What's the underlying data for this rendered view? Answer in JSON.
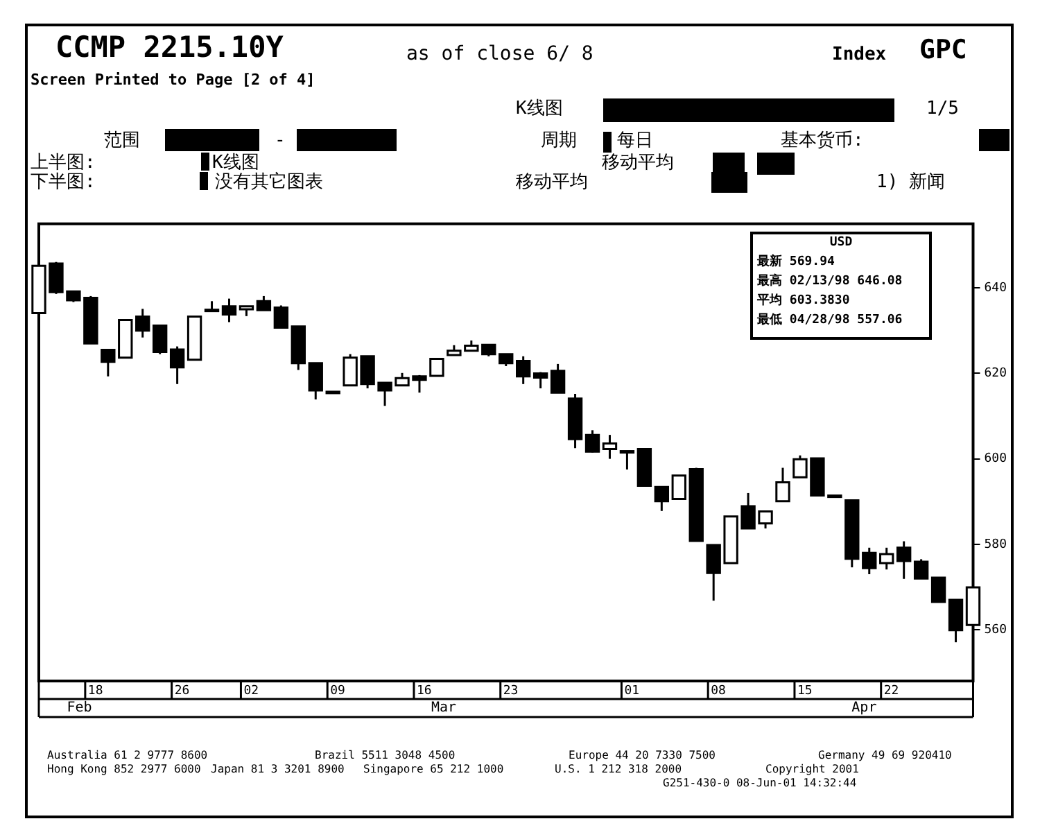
{
  "chart_data": {
    "type": "candlestick",
    "title": "CCMP   2215.10Y",
    "subtitle": "Screen Printed to Page [2 of 4]",
    "categories": [
      null,
      null,
      null,
      "18",
      null,
      null,
      null,
      null,
      "26",
      null,
      null,
      null,
      "02",
      null,
      null,
      null,
      null,
      "09",
      null,
      null,
      null,
      null,
      "16",
      null,
      null,
      null,
      null,
      "23",
      null,
      null,
      null,
      null,
      null,
      null,
      "01",
      null,
      null,
      null,
      null,
      "08",
      null,
      null,
      null,
      null,
      "15",
      null,
      null,
      null,
      null,
      "22",
      null,
      null,
      null,
      null,
      null
    ],
    "ohlc": [
      [
        634.1,
        645.2,
        634.1,
        645.2
      ],
      [
        645.7,
        646.08,
        638.6,
        639.0
      ],
      [
        639.2,
        639.2,
        636.7,
        637.1
      ],
      [
        637.7,
        638.1,
        627.0,
        627.0
      ],
      [
        625.5,
        625.5,
        619.3,
        622.7
      ],
      [
        623.7,
        632.5,
        623.7,
        632.5
      ],
      [
        633.3,
        635.1,
        628.4,
        630.0
      ],
      [
        631.2,
        631.2,
        624.5,
        625.0
      ],
      [
        625.6,
        626.3,
        617.5,
        621.4
      ],
      [
        623.2,
        633.3,
        623.2,
        633.3
      ],
      [
        634.9,
        636.9,
        634.8,
        634.8
      ],
      [
        635.7,
        637.5,
        632.0,
        633.8
      ],
      [
        635.0,
        635.7,
        633.4,
        635.7
      ],
      [
        636.9,
        638.1,
        634.8,
        634.8
      ],
      [
        635.4,
        635.9,
        630.7,
        630.7
      ],
      [
        631.0,
        631.0,
        620.8,
        622.4
      ],
      [
        622.4,
        622.4,
        613.9,
        616.0
      ],
      [
        615.7,
        615.7,
        615.7,
        615.7
      ],
      [
        617.2,
        624.5,
        617.2,
        623.7
      ],
      [
        624.0,
        624.0,
        616.5,
        617.5
      ],
      [
        617.8,
        617.8,
        612.4,
        616.0
      ],
      [
        617.2,
        620.1,
        617.2,
        618.9
      ],
      [
        619.3,
        619.6,
        615.5,
        618.5
      ],
      [
        619.4,
        623.4,
        619.4,
        623.4
      ],
      [
        624.3,
        626.6,
        624.3,
        625.3
      ],
      [
        625.3,
        627.7,
        625.3,
        626.5
      ],
      [
        626.7,
        626.7,
        624.0,
        624.5
      ],
      [
        624.5,
        624.5,
        621.7,
        622.4
      ],
      [
        622.9,
        624.0,
        617.5,
        619.3
      ],
      [
        620.0,
        620.3,
        616.5,
        619.0
      ],
      [
        620.6,
        622.2,
        615.5,
        615.5
      ],
      [
        614.1,
        615.2,
        602.5,
        604.6
      ],
      [
        605.6,
        606.7,
        601.5,
        601.7
      ],
      [
        602.3,
        605.6,
        600.0,
        603.6
      ],
      [
        601.8,
        601.8,
        597.5,
        601.8
      ],
      [
        602.3,
        602.5,
        593.7,
        593.7
      ],
      [
        593.4,
        593.4,
        587.8,
        590.1
      ],
      [
        590.6,
        596.1,
        590.6,
        596.1
      ],
      [
        597.6,
        597.9,
        580.8,
        580.8
      ],
      [
        579.8,
        579.8,
        566.8,
        573.3
      ],
      [
        575.6,
        586.5,
        575.6,
        586.5
      ],
      [
        588.9,
        592.0,
        583.7,
        583.7
      ],
      [
        584.9,
        587.7,
        583.7,
        587.7
      ],
      [
        590.1,
        597.9,
        590.1,
        594.5
      ],
      [
        595.7,
        600.8,
        595.7,
        599.9
      ],
      [
        600.1,
        600.1,
        591.4,
        591.4
      ],
      [
        591.4,
        591.4,
        591.4,
        591.4
      ],
      [
        590.3,
        590.3,
        574.6,
        576.6
      ],
      [
        578.0,
        579.2,
        573.0,
        574.4
      ],
      [
        575.6,
        579.2,
        574.1,
        577.7
      ],
      [
        579.2,
        580.7,
        571.9,
        576.1
      ],
      [
        575.9,
        576.5,
        572.0,
        572.0
      ],
      [
        572.2,
        572.2,
        566.5,
        566.5
      ],
      [
        567.0,
        567.0,
        557.06,
        559.9
      ],
      [
        561.1,
        569.9,
        561.1,
        569.9
      ]
    ],
    "colors": [
      "#ffffff",
      "#000000",
      "#000000",
      "#000000",
      "#000000",
      "#ffffff",
      "#000000",
      "#000000",
      "#000000",
      "#ffffff",
      "#000000",
      "#000000",
      "#ffffff",
      "#000000",
      "#000000",
      "#000000",
      "#000000",
      "#000000",
      "#ffffff",
      "#000000",
      "#000000",
      "#ffffff",
      "#000000",
      "#ffffff",
      "#ffffff",
      "#ffffff",
      "#000000",
      "#000000",
      "#000000",
      "#000000",
      "#000000",
      "#000000",
      "#000000",
      "#ffffff",
      "#000000",
      "#000000",
      "#000000",
      "#ffffff",
      "#000000",
      "#000000",
      "#ffffff",
      "#000000",
      "#ffffff",
      "#ffffff",
      "#ffffff",
      "#000000",
      "#000000",
      "#000000",
      "#000000",
      "#ffffff",
      "#000000",
      "#000000",
      "#000000",
      "#000000",
      "#ffffff"
    ],
    "ylim": [
      548,
      655
    ],
    "yticks": [
      560,
      580,
      600,
      620,
      640
    ],
    "annotations": [
      "as of close 6/ 8",
      "Index",
      "GPC",
      "K线图",
      "1/5",
      "范围",
      "-",
      "周期",
      "每日",
      "基本货币:",
      "上半图:",
      "K线图",
      "移动平均",
      "下半图:",
      "没有其它图表",
      "移动平均",
      "1) 新闻",
      "USD",
      "最新 569.94",
      "最高 02/13/98 646.08",
      "平均 603.3830",
      "最低 04/28/98 557.06",
      "Australia 61 2 9777 8600",
      "Brazil 5511 3048 4500",
      "Europe 44 20 7330 7500",
      "Germany 49 69 920410",
      "Hong Kong 852 2977 6000",
      "Japan 81 3 3201 8900",
      "Singapore 65 212 1000",
      "U.S. 1 212 318 2000",
      "Copyright 2001",
      "G251-430-0 08-Jun-01 14:32:44",
      "Feb",
      "Mar",
      "Apr"
    ]
  }
}
